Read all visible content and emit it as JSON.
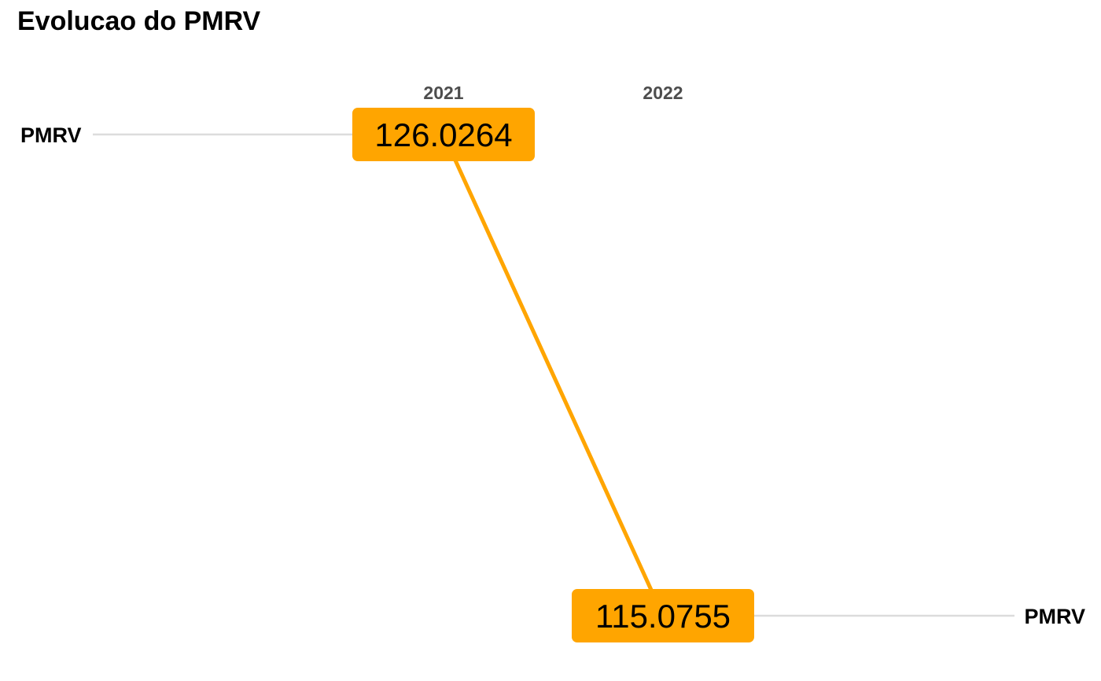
{
  "title": "Evolucao do PMRV",
  "chart_data": {
    "type": "line",
    "title": "Evolucao do PMRV",
    "x": [
      "2021",
      "2022"
    ],
    "series": [
      {
        "name": "PMRV",
        "values": [
          126.0264,
          115.0755
        ],
        "labels": [
          "126.0264",
          "115.0755"
        ]
      }
    ],
    "xlabel": "",
    "ylabel": "",
    "grid": false,
    "legend": "none"
  },
  "colors": {
    "line": "#FFA500",
    "label_fill": "#FFA500",
    "label_text": "#000000",
    "leader_line": "#DCDCDC",
    "year_label": "#4D4D4D",
    "series_label": "#000000"
  }
}
